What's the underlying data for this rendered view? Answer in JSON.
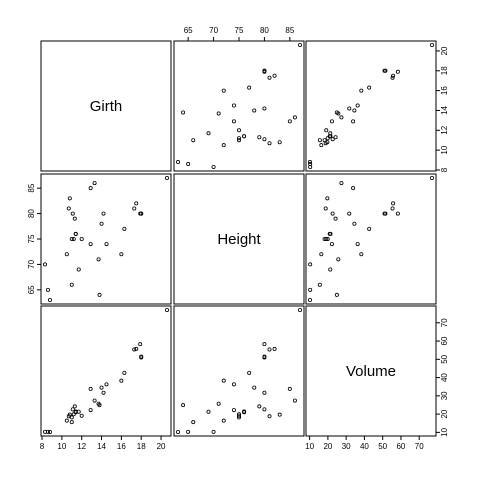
{
  "chart_data": {
    "type": "scatter-matrix",
    "variables": [
      "Girth",
      "Height",
      "Volume"
    ],
    "ranges": {
      "Girth": [
        8.3,
        20.6
      ],
      "Height": [
        63,
        87
      ],
      "Volume": [
        10.2,
        77.0
      ]
    },
    "ticks": {
      "Girth": [
        8,
        10,
        12,
        14,
        16,
        18,
        20
      ],
      "Height": [
        65,
        70,
        75,
        80,
        85
      ],
      "Volume": [
        10,
        20,
        30,
        40,
        50,
        60,
        70
      ]
    },
    "tick_labels": {
      "Girth": [
        "8",
        "10",
        "12",
        "14",
        "16",
        "18",
        "20"
      ],
      "Height": [
        "65",
        "70",
        "75",
        "80",
        "85"
      ],
      "Volume": [
        "10",
        "20",
        "30",
        "40",
        "50",
        "60",
        "70"
      ]
    },
    "data": {
      "Girth": [
        8.3,
        8.6,
        8.8,
        10.5,
        10.7,
        10.8,
        11.0,
        11.0,
        11.1,
        11.2,
        11.3,
        11.4,
        11.4,
        11.7,
        12.0,
        12.9,
        12.9,
        13.3,
        13.7,
        13.8,
        14.0,
        14.2,
        14.5,
        16.0,
        16.3,
        17.3,
        17.5,
        17.9,
        18.0,
        18.0,
        20.6
      ],
      "Height": [
        70,
        65,
        63,
        72,
        81,
        83,
        66,
        75,
        80,
        75,
        79,
        76,
        76,
        69,
        75,
        74,
        85,
        86,
        71,
        64,
        78,
        80,
        74,
        72,
        77,
        81,
        82,
        80,
        80,
        80,
        87
      ],
      "Volume": [
        10.3,
        10.3,
        10.2,
        16.4,
        18.8,
        19.7,
        15.6,
        18.2,
        22.6,
        19.9,
        24.2,
        21.0,
        21.4,
        21.3,
        19.1,
        22.2,
        33.8,
        27.4,
        25.7,
        24.9,
        34.5,
        31.7,
        36.3,
        38.3,
        42.6,
        55.4,
        55.7,
        58.3,
        51.5,
        51.0,
        77.0
      ]
    },
    "grid": false,
    "legend": "none"
  }
}
